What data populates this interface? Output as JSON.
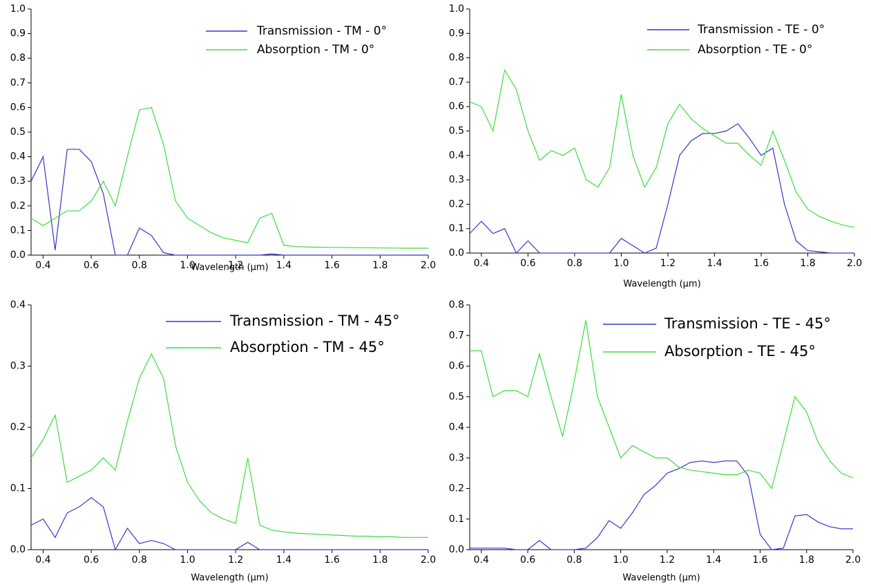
{
  "chart_data": [
    {
      "type": "line",
      "xlabel": "Wavelength (μm)",
      "legend": "upper right",
      "x": [
        0.35,
        0.4,
        0.45,
        0.5,
        0.55,
        0.6,
        0.65,
        0.7,
        0.75,
        0.8,
        0.85,
        0.9,
        0.95,
        1.0,
        1.05,
        1.1,
        1.15,
        1.2,
        1.25,
        1.3,
        1.35,
        1.4,
        1.45,
        1.5,
        1.55,
        1.6,
        1.65,
        1.7,
        1.75,
        1.8,
        1.85,
        1.9,
        1.95,
        2.0
      ],
      "xlim": [
        0.35,
        2.0
      ],
      "xticks": [
        0.4,
        0.6,
        0.8,
        {
          "value": 1,
          "label": "1.0"
        },
        1.2,
        1.4,
        1.6,
        1.8,
        {
          "value": 2,
          "label": "2.0"
        }
      ],
      "ylim": [
        0,
        1
      ],
      "yticks": [
        {
          "value": 0,
          "label": "0.0"
        },
        0.1,
        0.2,
        0.3,
        0.4,
        0.5,
        0.6,
        0.7,
        0.8,
        0.9,
        {
          "value": 1,
          "label": "1.0"
        }
      ],
      "series": [
        {
          "name": "Transmission - TM - 0°",
          "color": "#3535cc",
          "values": [
            0.3,
            0.4,
            0.02,
            0.43,
            0.43,
            0.38,
            0.25,
            0,
            0,
            0.11,
            0.08,
            0.01,
            0,
            0,
            0,
            0,
            0,
            0,
            0,
            0,
            0.005,
            0,
            0,
            0,
            0,
            0,
            0,
            0,
            0,
            0,
            0,
            0,
            0,
            0
          ]
        },
        {
          "name": "Absorption - TM - 0°",
          "color": "#3ddc3d",
          "values": [
            0.15,
            0.12,
            0.15,
            0.18,
            0.18,
            0.22,
            0.3,
            0.2,
            0.4,
            0.59,
            0.6,
            0.45,
            0.22,
            0.15,
            0.12,
            0.09,
            0.07,
            0.06,
            0.05,
            0.15,
            0.17,
            0.04,
            0.035,
            0.033,
            0.032,
            0.031,
            0.031,
            0.03,
            0.03,
            0.029,
            0.029,
            0.028,
            0.028,
            0.028
          ]
        }
      ]
    },
    {
      "type": "line",
      "xlabel": "Wavelength (μm)",
      "legend": "upper right",
      "x": [
        0.35,
        0.4,
        0.45,
        0.5,
        0.55,
        0.6,
        0.65,
        0.7,
        0.75,
        0.8,
        0.85,
        0.9,
        0.95,
        1.0,
        1.05,
        1.1,
        1.15,
        1.2,
        1.25,
        1.3,
        1.35,
        1.4,
        1.45,
        1.5,
        1.55,
        1.6,
        1.65,
        1.7,
        1.75,
        1.8,
        1.85,
        1.9,
        1.95,
        2.0
      ],
      "xlim": [
        0.35,
        2.0
      ],
      "xticks": [
        0.4,
        0.6,
        0.8,
        {
          "value": 1,
          "label": "1.0"
        },
        1.2,
        1.4,
        1.6,
        1.8,
        {
          "value": 2,
          "label": "2.0"
        }
      ],
      "ylim": [
        0,
        1
      ],
      "yticks": [
        {
          "value": 0,
          "label": "0.0"
        },
        0.1,
        0.2,
        0.3,
        0.4,
        0.5,
        0.6,
        0.7,
        0.8,
        0.9,
        {
          "value": 1,
          "label": "1.0"
        }
      ],
      "series": [
        {
          "name": "Transmission - TE - 0°",
          "color": "#3535cc",
          "values": [
            0.08,
            0.13,
            0.08,
            0.1,
            0,
            0.05,
            0,
            0,
            0,
            0,
            0,
            0,
            0,
            0.06,
            0.03,
            0,
            0.02,
            0.2,
            0.4,
            0.46,
            0.49,
            0.49,
            0.5,
            0.53,
            0.47,
            0.4,
            0.43,
            0.2,
            0.05,
            0.01,
            0.005,
            0,
            0,
            0
          ]
        },
        {
          "name": "Absorption - TE - 0°",
          "color": "#3ddc3d",
          "values": [
            0.62,
            0.6,
            0.5,
            0.75,
            0.67,
            0.5,
            0.38,
            0.42,
            0.4,
            0.43,
            0.3,
            0.27,
            0.35,
            0.65,
            0.4,
            0.27,
            0.35,
            0.53,
            0.61,
            0.55,
            0.51,
            0.48,
            0.45,
            0.45,
            0.4,
            0.36,
            0.5,
            0.38,
            0.25,
            0.18,
            0.15,
            0.13,
            0.115,
            0.105
          ]
        }
      ]
    },
    {
      "type": "line",
      "xlabel": "Wavelength (μm)",
      "legend": "upper right",
      "x": [
        0.35,
        0.4,
        0.45,
        0.5,
        0.55,
        0.6,
        0.65,
        0.7,
        0.75,
        0.8,
        0.85,
        0.9,
        0.95,
        1.0,
        1.05,
        1.1,
        1.15,
        1.2,
        1.25,
        1.3,
        1.35,
        1.4,
        1.45,
        1.5,
        1.55,
        1.6,
        1.65,
        1.7,
        1.75,
        1.8,
        1.85,
        1.9,
        1.95,
        2.0
      ],
      "xlim": [
        0.35,
        2.0
      ],
      "xticks": [
        0.4,
        0.6,
        0.8,
        {
          "value": 1,
          "label": "1.0"
        },
        1.2,
        1.4,
        1.6,
        1.8,
        {
          "value": 2,
          "label": "2.0"
        }
      ],
      "ylim": [
        0,
        0.4
      ],
      "yticks": [
        {
          "value": 0,
          "label": "0.0"
        },
        0.1,
        0.2,
        0.3,
        0.4
      ],
      "series": [
        {
          "name": "Transmission - TM - 45°",
          "color": "#3535cc",
          "values": [
            0.04,
            0.05,
            0.02,
            0.06,
            0.07,
            0.085,
            0.07,
            0,
            0.035,
            0.01,
            0.015,
            0.01,
            0,
            0,
            0,
            0,
            0,
            0,
            0.012,
            0,
            0,
            0,
            0,
            0,
            0,
            0,
            0,
            0,
            0,
            0,
            0,
            0,
            0,
            0
          ]
        },
        {
          "name": "Absorption - TM - 45°",
          "color": "#3ddc3d",
          "values": [
            0.15,
            0.18,
            0.22,
            0.11,
            0.12,
            0.13,
            0.15,
            0.13,
            0.21,
            0.28,
            0.32,
            0.28,
            0.17,
            0.11,
            0.08,
            0.06,
            0.05,
            0.043,
            0.15,
            0.04,
            0.032,
            0.029,
            0.027,
            0.026,
            0.025,
            0.024,
            0.023,
            0.022,
            0.022,
            0.021,
            0.021,
            0.02,
            0.02,
            0.02
          ]
        }
      ]
    },
    {
      "type": "line",
      "xlabel": "Wavelength (μm)",
      "legend": "upper right",
      "x": [
        0.35,
        0.4,
        0.45,
        0.5,
        0.55,
        0.6,
        0.65,
        0.7,
        0.75,
        0.8,
        0.85,
        0.9,
        0.95,
        1.0,
        1.05,
        1.1,
        1.15,
        1.2,
        1.25,
        1.3,
        1.35,
        1.4,
        1.45,
        1.5,
        1.55,
        1.6,
        1.65,
        1.7,
        1.75,
        1.8,
        1.85,
        1.9,
        1.95,
        2.0
      ],
      "xlim": [
        0.35,
        2.0
      ],
      "xticks": [
        0.4,
        0.6,
        0.8,
        {
          "value": 1,
          "label": "1.0"
        },
        1.2,
        1.4,
        1.6,
        1.8,
        {
          "value": 2,
          "label": "2.0"
        }
      ],
      "ylim": [
        0,
        0.8
      ],
      "yticks": [
        {
          "value": 0,
          "label": "0.0"
        },
        0.1,
        0.2,
        0.3,
        0.4,
        0.5,
        0.6,
        0.7,
        0.8
      ],
      "series": [
        {
          "name": "Transmission - TE - 45°",
          "color": "#3535cc",
          "values": [
            0.005,
            0.005,
            0.005,
            0.005,
            0,
            0,
            0.03,
            0,
            0,
            0,
            0.005,
            0.04,
            0.095,
            0.07,
            0.12,
            0.18,
            0.21,
            0.25,
            0.265,
            0.285,
            0.29,
            0.285,
            0.29,
            0.29,
            0.24,
            0.05,
            0,
            0.005,
            0.11,
            0.115,
            0.09,
            0.075,
            0.068,
            0.068
          ]
        },
        {
          "name": "Absorption - TE - 45°",
          "color": "#3ddc3d",
          "values": [
            0.65,
            0.65,
            0.5,
            0.52,
            0.52,
            0.5,
            0.64,
            0.5,
            0.37,
            0.55,
            0.75,
            0.5,
            0.4,
            0.3,
            0.34,
            0.32,
            0.3,
            0.3,
            0.27,
            0.26,
            0.255,
            0.25,
            0.245,
            0.245,
            0.26,
            0.25,
            0.2,
            0.35,
            0.5,
            0.45,
            0.35,
            0.29,
            0.25,
            0.235
          ]
        }
      ]
    }
  ]
}
